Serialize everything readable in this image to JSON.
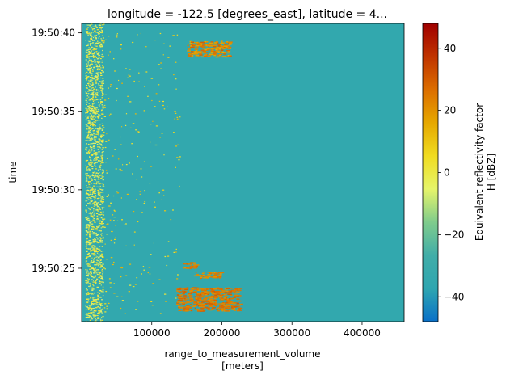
{
  "chart_data": {
    "type": "heatmap",
    "title": "longitude = -122.5 [degrees_east], latitude = 4...",
    "xlabel": "range_to_measurement_volume",
    "xlabel_units": "[meters]",
    "ylabel": "time",
    "xlim": [
      0,
      460000
    ],
    "x_ticks": [
      {
        "value": 100000,
        "label": "100000"
      },
      {
        "value": 200000,
        "label": "200000"
      },
      {
        "value": 300000,
        "label": "300000"
      },
      {
        "value": 400000,
        "label": "400000"
      }
    ],
    "ylim": [
      "19:50:21.6",
      "19:50:40.6"
    ],
    "y_ticks": [
      {
        "value": "19:50:25",
        "label": "19:50:25"
      },
      {
        "value": "19:50:30",
        "label": "19:50:30"
      },
      {
        "value": "19:50:35",
        "label": "19:50:35"
      },
      {
        "value": "19:50:40",
        "label": "19:50:40"
      }
    ],
    "background_value_dBZ": -35,
    "colorbar": {
      "label_line1": "Equivalent reflectivity factor",
      "label_line2": "H [dBZ]",
      "range": [
        -48,
        48
      ],
      "ticks": [
        {
          "value": 40,
          "label": "40"
        },
        {
          "value": 20,
          "label": "20"
        },
        {
          "value": 0,
          "label": "0"
        },
        {
          "value": -20,
          "label": "−20"
        },
        {
          "value": -40,
          "label": "−40"
        }
      ],
      "colors": [
        "#0a70c8",
        "#2ea6b0",
        "#41ada8",
        "#7fcc8c",
        "#e6f56a",
        "#f0dc20",
        "#e6a800",
        "#dc6e00",
        "#c03400",
        "#a00000"
      ]
    },
    "features": [
      {
        "name": "near-range clutter band",
        "x": [
          5000,
          30000
        ],
        "t": [
          "19:50:21.6",
          "19:50:40.6"
        ],
        "dBZ": [
          -10,
          5
        ]
      },
      {
        "name": "scattered echoes",
        "x": [
          30000,
          140000
        ],
        "t": [
          "19:50:22",
          "19:50:40"
        ],
        "dBZ": [
          0,
          15
        ]
      },
      {
        "name": "main precipitation cell",
        "x": [
          135000,
          225000
        ],
        "t": [
          "19:50:22.3",
          "19:50:23.8"
        ],
        "dBZ": [
          20,
          30
        ]
      },
      {
        "name": "small cell",
        "x": [
          145000,
          165000
        ],
        "t": [
          "19:50:25",
          "19:50:25.4"
        ],
        "dBZ": [
          20,
          28
        ]
      },
      {
        "name": "small cell",
        "x": [
          160000,
          200000
        ],
        "t": [
          "19:50:24.4",
          "19:50:24.8"
        ],
        "dBZ": [
          18,
          26
        ]
      },
      {
        "name": "upper echoes",
        "x": [
          150000,
          210000
        ],
        "t": [
          "19:50:38.5",
          "19:50:39.5"
        ],
        "dBZ": [
          15,
          30
        ]
      }
    ]
  }
}
